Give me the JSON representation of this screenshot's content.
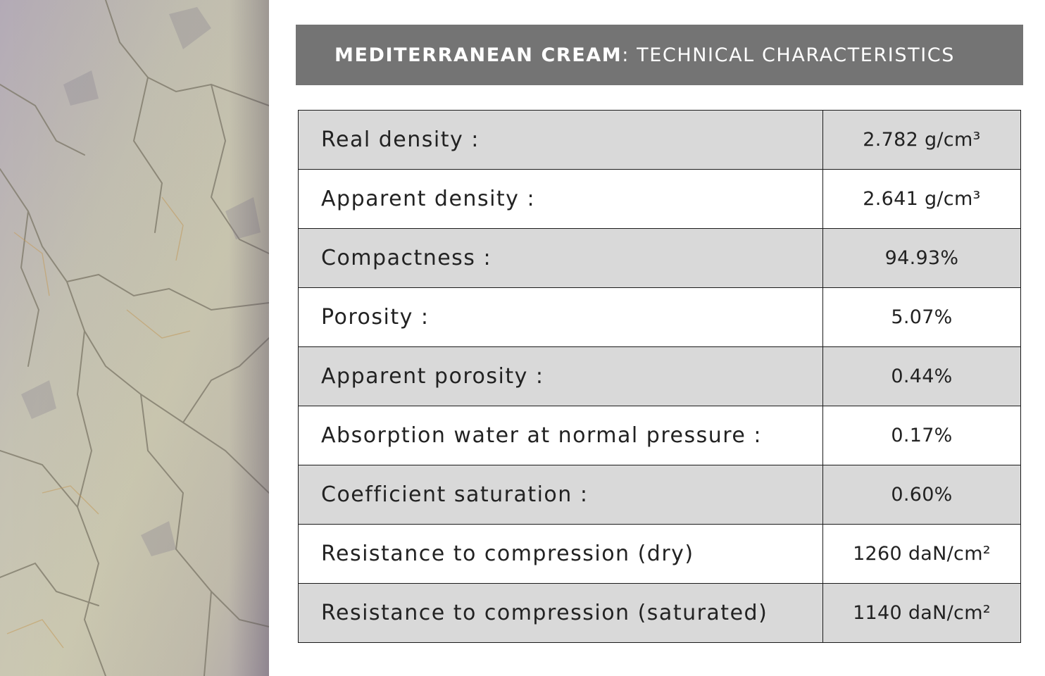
{
  "header": {
    "title_bold": "MEDITERRANEAN CREAM",
    "title_rest": ": TECHNICAL CHARACTERISTICS"
  },
  "image": {
    "subject": "marble-texture"
  },
  "table": {
    "rows": [
      {
        "label": "Real density :",
        "value": "2.782 g/cm³"
      },
      {
        "label": "Apparent density :",
        "value": "2.641 g/cm³"
      },
      {
        "label": "Compactness :",
        "value": "94.93%"
      },
      {
        "label": "Porosity :",
        "value": "5.07%"
      },
      {
        "label": "Apparent porosity :",
        "value": "0.44%"
      },
      {
        "label": "Absorption water at normal pressure :",
        "value": "0.17%"
      },
      {
        "label": "Coefficient saturation :",
        "value": "0.60%"
      },
      {
        "label": "Resistance to compression (dry)",
        "value": "1260 daN/cm²"
      },
      {
        "label": "Resistance to compression (saturated)",
        "value": "1140 daN/cm²"
      }
    ]
  },
  "colors": {
    "header_bg": "#747474",
    "row_shaded": "#d9d9d9",
    "row_plain": "#ffffff",
    "border": "#1a1a1a"
  }
}
